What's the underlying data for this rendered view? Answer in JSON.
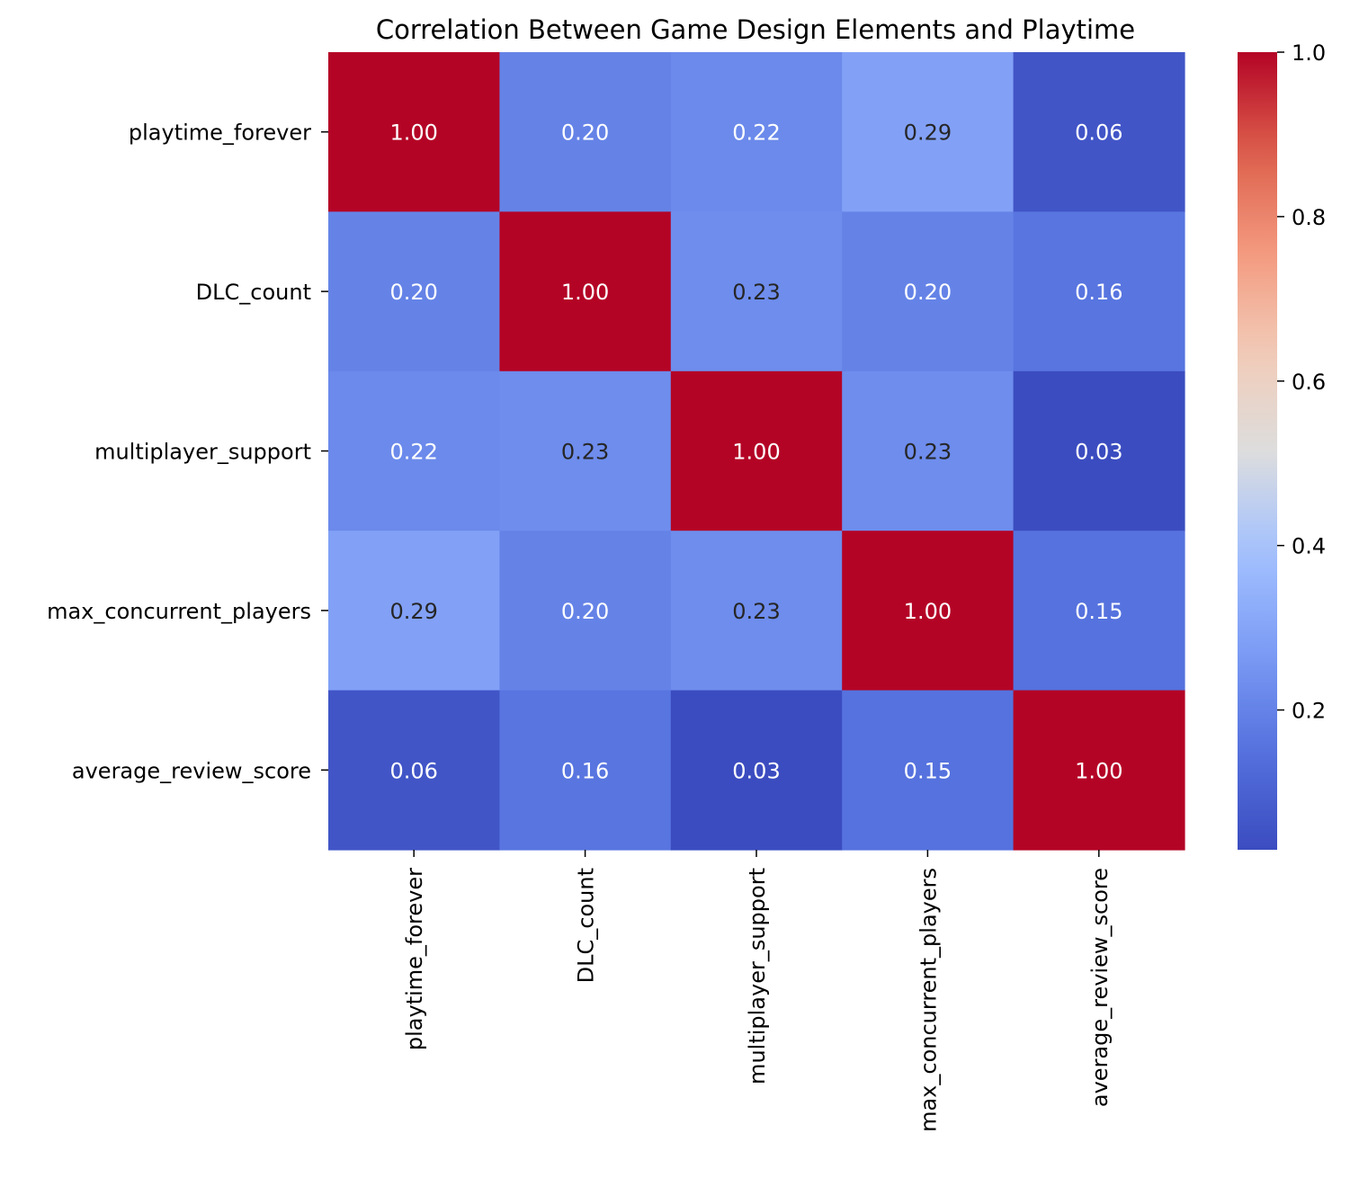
{
  "chart_data": {
    "type": "heatmap",
    "title": "Correlation Between Game Design Elements and Playtime",
    "xlabel": "",
    "ylabel": "",
    "row_labels": [
      "playtime_forever",
      "DLC_count",
      "multiplayer_support",
      "max_concurrent_players",
      "average_review_score"
    ],
    "col_labels": [
      "playtime_forever",
      "DLC_count",
      "multiplayer_support",
      "max_concurrent_players",
      "average_review_score"
    ],
    "values": [
      [
        1.0,
        0.2,
        0.22,
        0.29,
        0.06
      ],
      [
        0.2,
        1.0,
        0.23,
        0.2,
        0.16
      ],
      [
        0.22,
        0.23,
        1.0,
        0.23,
        0.03
      ],
      [
        0.29,
        0.2,
        0.23,
        1.0,
        0.15
      ],
      [
        0.06,
        0.16,
        0.03,
        0.15,
        1.0
      ]
    ],
    "value_format": "0.00",
    "colormap": "coolwarm",
    "color_range": [
      0.03,
      1.0
    ],
    "colorbar": {
      "ticks": [
        0.2,
        0.4,
        0.6,
        0.8,
        1.0
      ],
      "tick_labels": [
        "0.2",
        "0.4",
        "0.6",
        "0.8",
        "1.0"
      ],
      "placement": "right"
    },
    "grid": false
  }
}
